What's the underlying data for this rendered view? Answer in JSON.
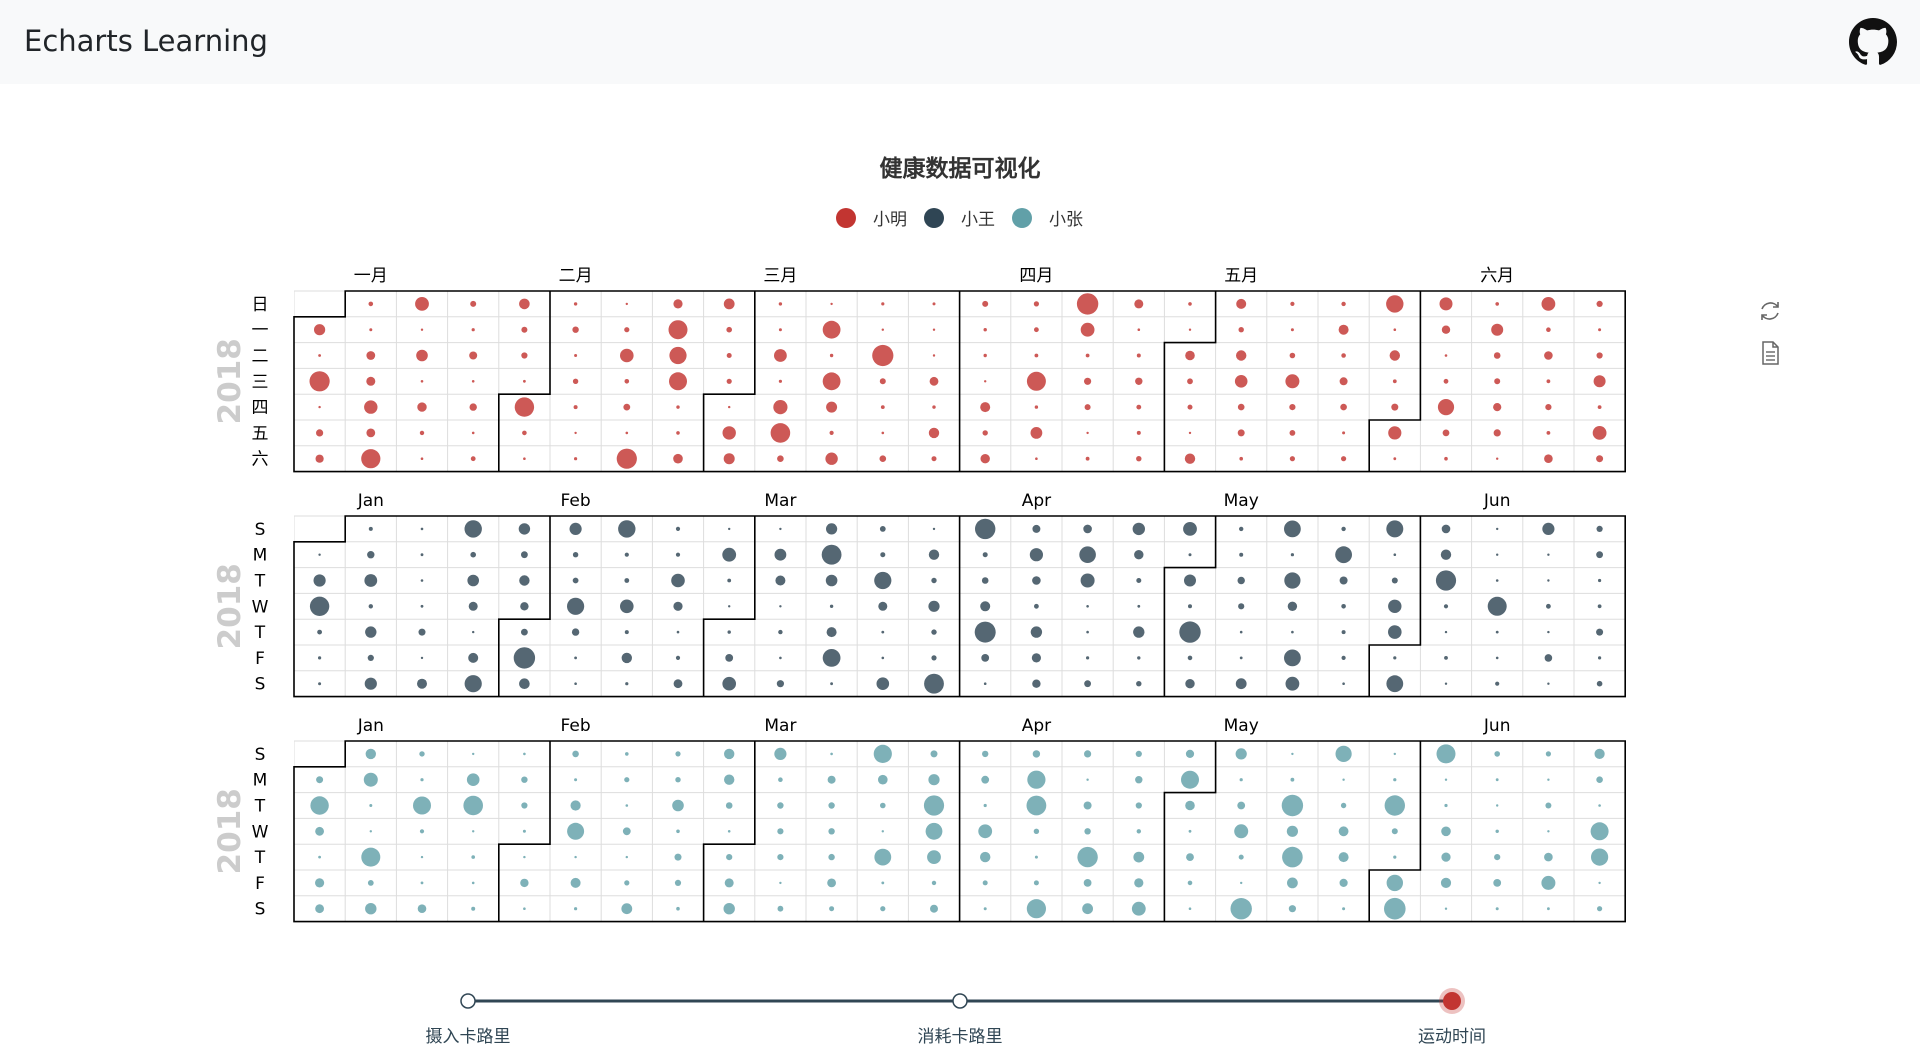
{
  "navbar": {
    "brand": "Echarts Learning",
    "github_icon": "github-icon"
  },
  "toolbox": {
    "restore_icon": "restore-icon",
    "data_view_icon": "data-view-icon"
  },
  "colors": {
    "red": "#c23531",
    "dark": "#2f4554",
    "teal": "#61a0a8",
    "axis": "#304654"
  },
  "chart_data": {
    "type": "calendar-scatter",
    "title": "健康数据可视化",
    "legend": [
      "小明",
      "小王",
      "小张"
    ],
    "range": [
      "2018-01-01",
      "2018-06-30"
    ],
    "year_label": "2018",
    "calendars": [
      {
        "series": "小明",
        "color": "#c23531",
        "months": [
          "一月",
          "二月",
          "三月",
          "四月",
          "五月",
          "六月"
        ],
        "days": [
          "日",
          "一",
          "二",
          "三",
          "四",
          "五",
          "六"
        ],
        "month_week_index": [
          1,
          5,
          9,
          14,
          18,
          23
        ]
      },
      {
        "series": "小王",
        "color": "#2f4554",
        "months": [
          "Jan",
          "Feb",
          "Mar",
          "Apr",
          "May",
          "Jun"
        ],
        "days": [
          "S",
          "M",
          "T",
          "W",
          "T",
          "F",
          "S"
        ],
        "month_week_index": [
          1,
          5,
          9,
          14,
          18,
          23
        ]
      },
      {
        "series": "小张",
        "color": "#61a0a8",
        "months": [
          "Jan",
          "Feb",
          "Mar",
          "Apr",
          "May",
          "Jun"
        ],
        "days": [
          "S",
          "M",
          "T",
          "W",
          "T",
          "F",
          "S"
        ],
        "month_week_index": [
          1,
          5,
          9,
          14,
          18,
          23
        ]
      }
    ],
    "timeline": {
      "items": [
        "摄入卡路里",
        "消耗卡路里",
        "运动时间"
      ],
      "current": 2
    }
  }
}
